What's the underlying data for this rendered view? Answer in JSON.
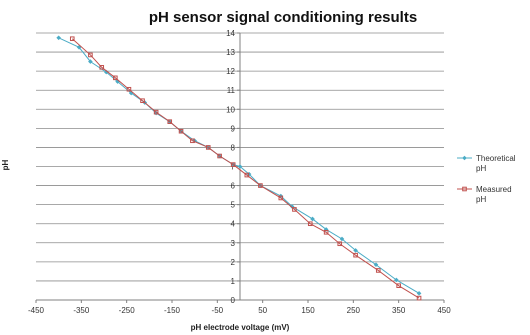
{
  "chart_data": {
    "type": "scatter",
    "title": "pH sensor signal conditioning results",
    "xlabel": "pH electrode voltage (mV)",
    "ylabel": "pH",
    "xlim": [
      -450,
      450
    ],
    "ylim": [
      0,
      14
    ],
    "x_ticks": [
      -450,
      -350,
      -250,
      -150,
      -50,
      50,
      150,
      250,
      350,
      450
    ],
    "y_ticks": [
      0,
      1,
      2,
      3,
      4,
      5,
      6,
      7,
      8,
      9,
      10,
      11,
      12,
      13,
      14
    ],
    "grid": "horizontal",
    "legend_position": "right",
    "series": [
      {
        "name": "Theoretical pH",
        "color": "#4bacc6",
        "marker": "diamond",
        "x": [
          -400,
          -355,
          -330,
          -295,
          -270,
          -240,
          -210,
          -185,
          -155,
          -130,
          -100,
          -70,
          -45,
          -15,
          0,
          20,
          45,
          90,
          115,
          160,
          190,
          225,
          255,
          300,
          345,
          395
        ],
        "y": [
          13.75,
          13.25,
          12.5,
          11.95,
          11.45,
          10.85,
          10.35,
          9.8,
          9.35,
          8.85,
          8.35,
          8.0,
          7.55,
          7.1,
          7.0,
          6.6,
          6.0,
          5.45,
          4.9,
          4.25,
          3.7,
          3.2,
          2.6,
          1.85,
          1.05,
          0.35
        ]
      },
      {
        "name": "Measured pH",
        "color": "#c0504d",
        "marker": "square",
        "x": [
          -370,
          -330,
          -305,
          -275,
          -245,
          -215,
          -185,
          -155,
          -130,
          -105,
          -70,
          -45,
          -15,
          15,
          45,
          90,
          120,
          155,
          190,
          220,
          255,
          305,
          350,
          395
        ],
        "y": [
          13.7,
          12.85,
          12.2,
          11.65,
          11.05,
          10.45,
          9.85,
          9.35,
          8.85,
          8.35,
          8.0,
          7.55,
          7.1,
          6.55,
          6.0,
          5.35,
          4.75,
          4.0,
          3.55,
          2.95,
          2.35,
          1.55,
          0.75,
          0.1
        ]
      }
    ],
    "legend": [
      {
        "line1": "Theoretical",
        "line2": "pH"
      },
      {
        "line1": "Measured",
        "line2": "pH"
      }
    ]
  }
}
